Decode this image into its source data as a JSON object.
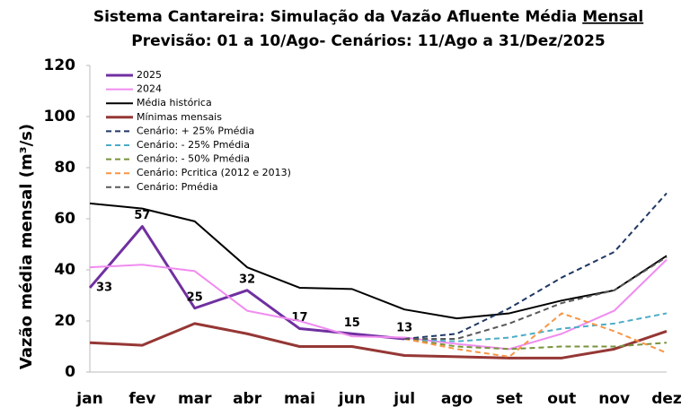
{
  "chart_data": {
    "type": "line",
    "title": "Sistema Cantareira: Simulação da Vazão Afluente Média",
    "title_underlined": "Mensal",
    "subtitle": "Previsão: 01 a 10/Ago- Cenários: 11/Ago a 31/Dez/2025",
    "y_label": "Vazão média mensal (m³/s)",
    "categories": [
      "jan",
      "fev",
      "mar",
      "abr",
      "mai",
      "jun",
      "jul",
      "ago",
      "set",
      "out",
      "nov",
      "dez"
    ],
    "ylim": [
      0,
      120
    ],
    "yticks": [
      0,
      20,
      40,
      60,
      80,
      100,
      120
    ],
    "grid": false,
    "legend": "upper left",
    "series": [
      {
        "name": "2025",
        "color": "#7030a0",
        "width": 3,
        "dashed": false,
        "labels": true,
        "values": [
          33,
          57,
          25,
          32,
          17,
          15,
          13,
          null,
          null,
          null,
          null,
          null
        ]
      },
      {
        "name": "2024",
        "color": "#f08cf0",
        "width": 2,
        "dashed": false,
        "values": [
          41,
          42,
          39.5,
          24,
          20,
          14,
          13.5,
          11,
          9,
          15,
          24,
          44
        ]
      },
      {
        "name": "Média histórica",
        "color": "#000000",
        "width": 2,
        "dashed": false,
        "values": [
          66,
          64,
          59,
          41,
          33,
          32.5,
          24.5,
          21,
          23,
          28,
          32,
          45.5
        ]
      },
      {
        "name": "Mínimas mensais",
        "color": "#953735",
        "width": 3,
        "dashed": false,
        "values": [
          11.5,
          10.5,
          19,
          15,
          10,
          10,
          6.5,
          6,
          5.5,
          5.5,
          9,
          16
        ]
      },
      {
        "name": "Cenário: + 25% Pmédia",
        "color": "#1f3864",
        "width": 2,
        "dashed": true,
        "values": [
          null,
          null,
          null,
          null,
          null,
          null,
          13,
          15,
          25,
          37,
          47,
          70
        ]
      },
      {
        "name": "Cenário: - 25% Pmédia",
        "color": "#4bacc6",
        "width": 2,
        "dashed": true,
        "values": [
          null,
          null,
          null,
          null,
          null,
          null,
          13,
          12,
          13.5,
          17,
          19,
          23
        ]
      },
      {
        "name": "Cenário: - 50% Pmédia",
        "color": "#77933c",
        "width": 2,
        "dashed": true,
        "values": [
          null,
          null,
          null,
          null,
          null,
          null,
          13,
          10,
          9,
          10,
          10,
          11.5
        ]
      },
      {
        "name": "Cenário: Pcritica (2012 e 2013)",
        "color": "#f79646",
        "width": 2,
        "dashed": true,
        "values": [
          null,
          null,
          null,
          null,
          null,
          null,
          13,
          9,
          6,
          23,
          16,
          7.5
        ]
      },
      {
        "name": "Cenário: Pmédia",
        "color": "#595959",
        "width": 2,
        "dashed": true,
        "values": [
          null,
          null,
          null,
          null,
          null,
          null,
          13,
          13,
          19,
          27,
          32,
          45
        ]
      }
    ]
  }
}
